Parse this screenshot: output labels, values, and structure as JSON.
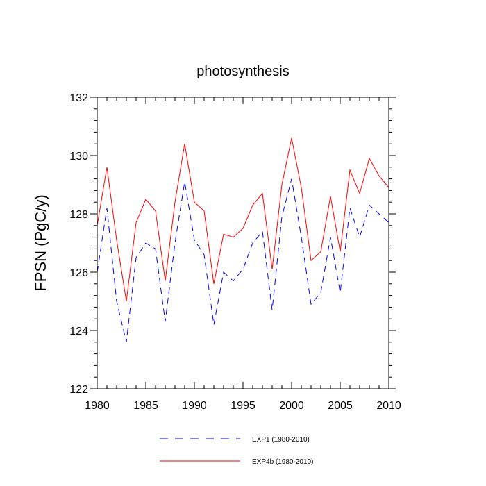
{
  "chart_data": {
    "type": "line",
    "title": "photosynthesis",
    "xlabel": "",
    "ylabel": "FPSN  (PgC/y)",
    "xlim": [
      1980,
      2010
    ],
    "ylim": [
      122,
      132
    ],
    "xticks": [
      1980,
      1985,
      1990,
      1995,
      2000,
      2005,
      2010
    ],
    "yticks": [
      122,
      124,
      126,
      128,
      130,
      132
    ],
    "x": [
      1980,
      1981,
      1982,
      1983,
      1984,
      1985,
      1986,
      1987,
      1988,
      1989,
      1990,
      1991,
      1992,
      1993,
      1994,
      1995,
      1996,
      1997,
      1998,
      1999,
      2000,
      2001,
      2002,
      2003,
      2004,
      2005,
      2006,
      2007,
      2008,
      2009,
      2010
    ],
    "grid": false,
    "legend_position": "bottom",
    "series": [
      {
        "name": "EXP1 (1980-2010)",
        "color": "#0000ff",
        "style": "dashed",
        "values": [
          126.0,
          128.2,
          125.0,
          123.6,
          126.5,
          127.0,
          126.8,
          124.3,
          127.0,
          129.1,
          127.1,
          126.6,
          124.2,
          126.0,
          125.7,
          126.1,
          127.0,
          127.4,
          124.7,
          127.9,
          129.2,
          127.2,
          124.9,
          125.3,
          127.2,
          125.3,
          128.2,
          127.2,
          128.3,
          128.0,
          127.7
        ]
      },
      {
        "name": "EXP4b (1980-2010)",
        "color": "#ff0000",
        "style": "solid",
        "values": [
          127.6,
          129.6,
          127.1,
          125.0,
          127.7,
          128.5,
          128.1,
          125.7,
          128.4,
          130.4,
          128.4,
          128.1,
          125.6,
          127.3,
          127.2,
          127.5,
          128.3,
          128.7,
          126.1,
          129.0,
          130.6,
          128.9,
          126.4,
          126.7,
          128.6,
          126.7,
          129.5,
          128.7,
          129.9,
          129.3,
          128.9
        ]
      }
    ]
  }
}
